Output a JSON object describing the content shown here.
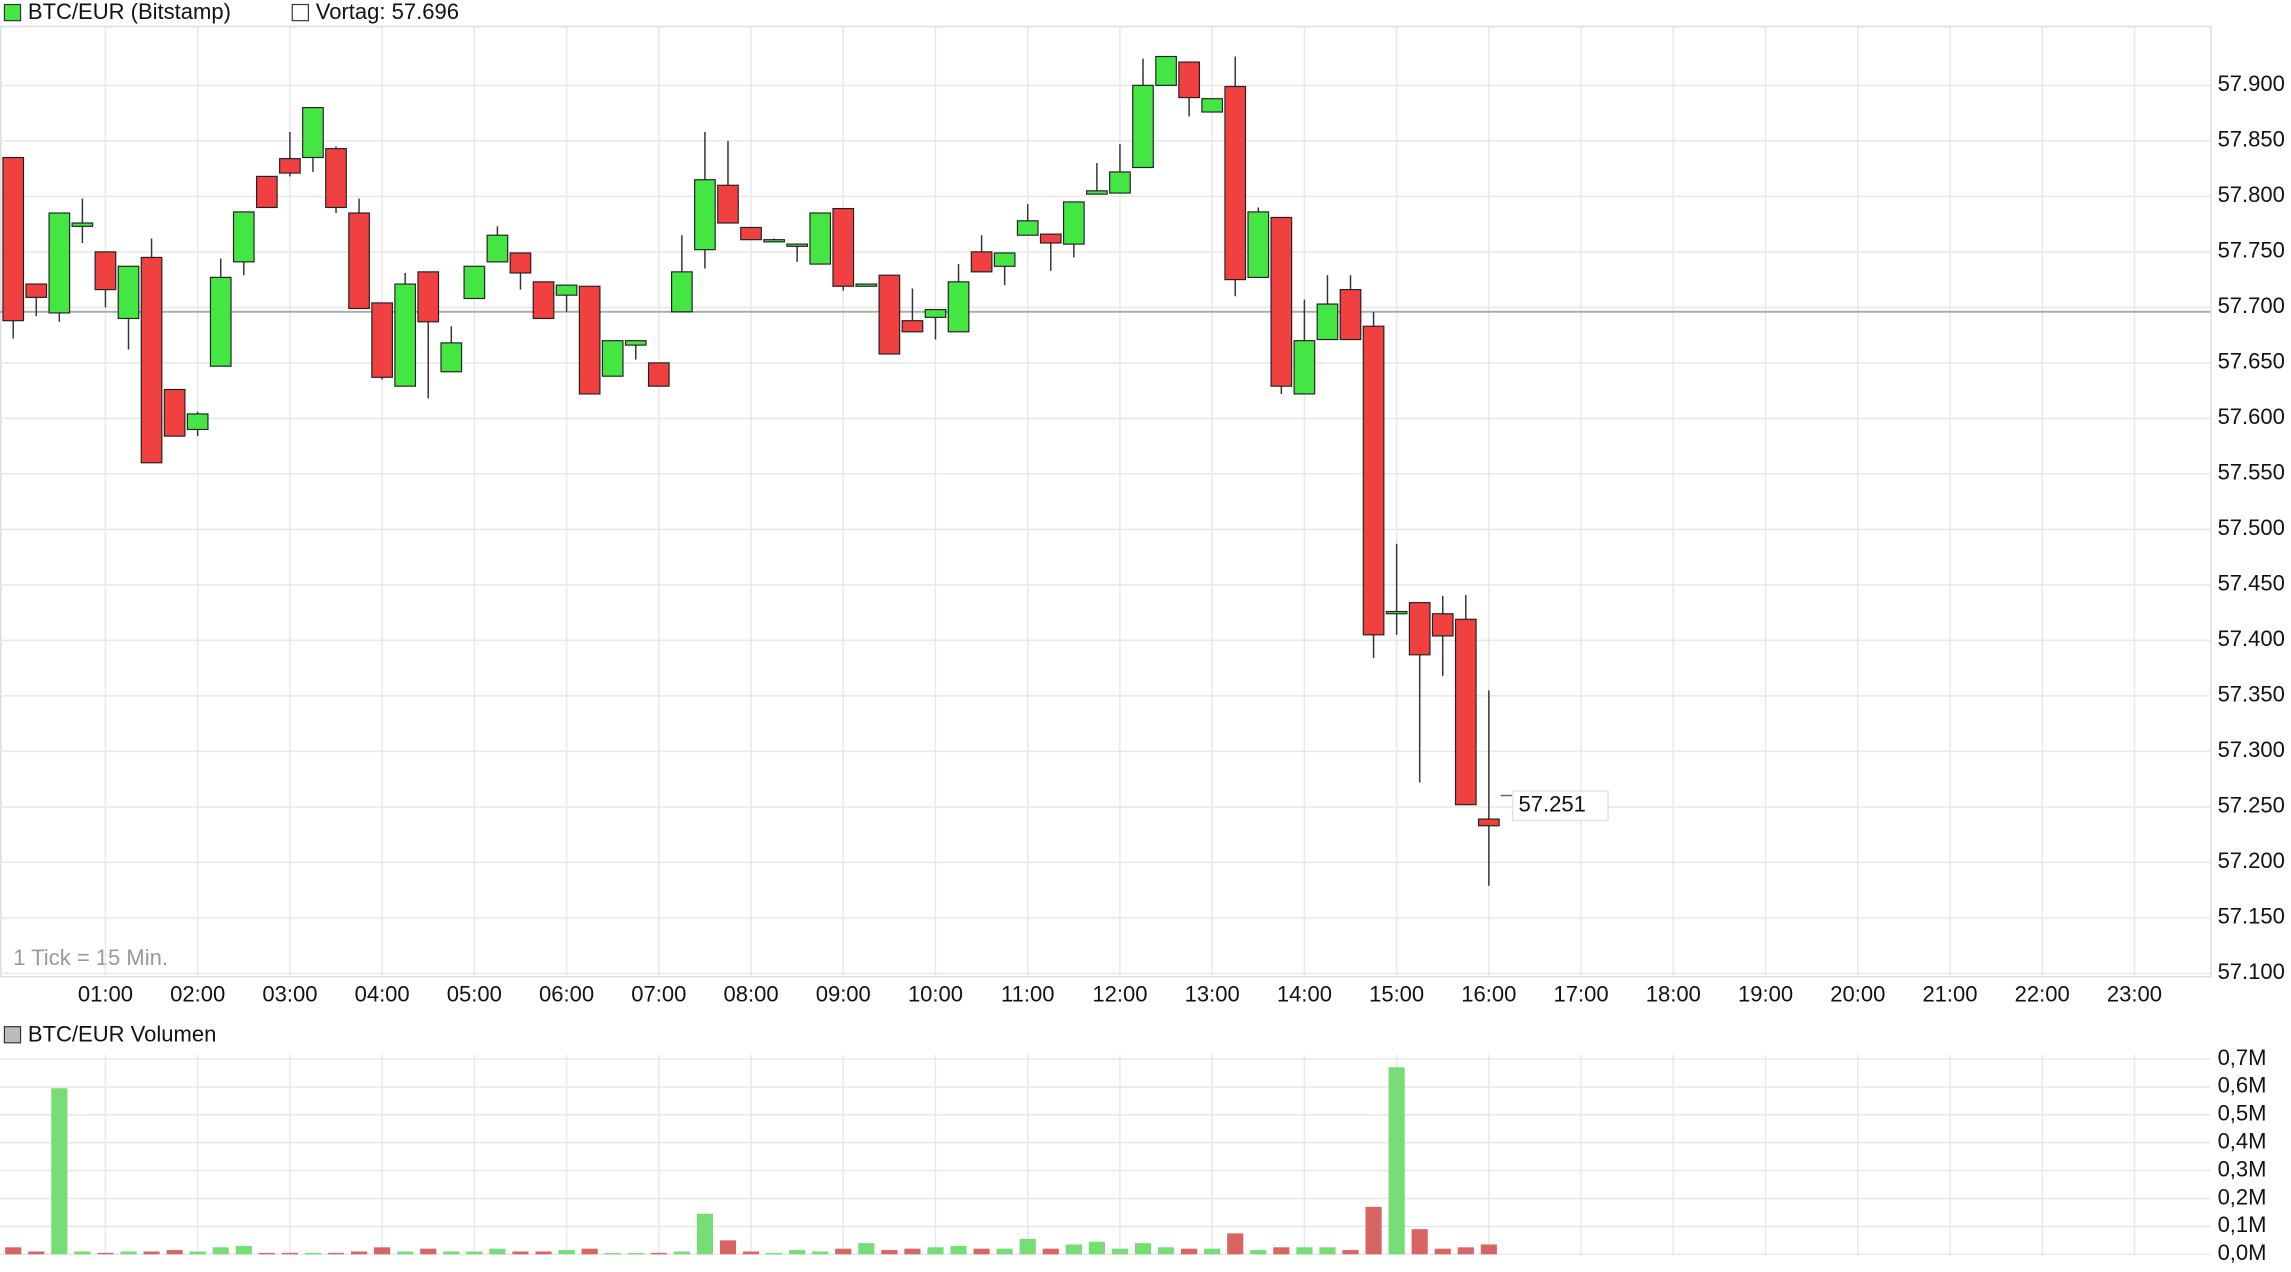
{
  "chart_data": [
    {
      "type": "candlestick",
      "title": "BTC/EUR (Bitstamp)",
      "annotation": "1 Tick = 15 Min.",
      "reference_line": {
        "value": 57.696,
        "label": "Vortag: 57.696"
      },
      "last_value": 57.251,
      "xticks": [
        "01:00",
        "02:00",
        "03:00",
        "04:00",
        "05:00",
        "06:00",
        "07:00",
        "08:00",
        "09:00",
        "10:00",
        "11:00",
        "12:00",
        "13:00",
        "14:00",
        "15:00",
        "16:00",
        "17:00",
        "18:00",
        "19:00",
        "20:00",
        "21:00",
        "22:00",
        "23:00"
      ],
      "ylim": [
        57.097,
        57.953
      ],
      "yticks": [
        {
          "value": 57.1,
          "label": "57.100"
        },
        {
          "value": 57.15,
          "label": "57.150"
        },
        {
          "value": 57.2,
          "label": "57.200"
        },
        {
          "value": 57.25,
          "label": "57.250"
        },
        {
          "value": 57.3,
          "label": "57.300"
        },
        {
          "value": 57.35,
          "label": "57.350"
        },
        {
          "value": 57.4,
          "label": "57.400"
        },
        {
          "value": 57.45,
          "label": "57.450"
        },
        {
          "value": 57.5,
          "label": "57.500"
        },
        {
          "value": 57.55,
          "label": "57.550"
        },
        {
          "value": 57.6,
          "label": "57.600"
        },
        {
          "value": 57.65,
          "label": "57.650"
        },
        {
          "value": 57.7,
          "label": "57.700"
        },
        {
          "value": 57.75,
          "label": "57.750"
        },
        {
          "value": 57.8,
          "label": "57.800"
        },
        {
          "value": 57.85,
          "label": "57.850"
        },
        {
          "value": 57.9,
          "label": "57.900"
        }
      ],
      "grid": true,
      "up_color": "#44e644",
      "down_color": "#f04040",
      "open": [
        57.835,
        57.721,
        57.695,
        57.773,
        57.75,
        57.69,
        57.745,
        57.626,
        57.59,
        57.647,
        57.741,
        57.818,
        57.834,
        57.835,
        57.843,
        57.785,
        57.704,
        57.629,
        57.732,
        57.642,
        57.708,
        57.741,
        57.749,
        57.723,
        57.711,
        57.719,
        57.638,
        57.666,
        57.65,
        57.696,
        57.752,
        57.81,
        57.772,
        57.761,
        57.755,
        57.739,
        57.789,
        57.719,
        57.729,
        57.688,
        57.691,
        57.678,
        57.75,
        57.737,
        57.765,
        57.766,
        57.757,
        57.802,
        57.803,
        57.826,
        57.9,
        57.921,
        57.876,
        57.899,
        57.727,
        57.781,
        57.622,
        57.671,
        57.716,
        57.683,
        57.424,
        57.434,
        57.424,
        57.419,
        57.239
      ],
      "high": [
        57.835,
        57.721,
        57.785,
        57.798,
        57.75,
        57.737,
        57.762,
        57.626,
        57.606,
        57.744,
        57.786,
        57.818,
        57.858,
        57.88,
        57.845,
        57.798,
        57.704,
        57.731,
        57.732,
        57.683,
        57.737,
        57.773,
        57.749,
        57.723,
        57.72,
        57.719,
        57.67,
        57.67,
        57.65,
        57.765,
        57.858,
        57.85,
        57.772,
        57.762,
        57.757,
        57.785,
        57.789,
        57.721,
        57.729,
        57.717,
        57.698,
        57.739,
        57.765,
        57.749,
        57.793,
        57.766,
        57.795,
        57.83,
        57.847,
        57.924,
        57.926,
        57.921,
        57.888,
        57.926,
        57.79,
        57.781,
        57.707,
        57.729,
        57.729,
        57.696,
        57.487,
        57.434,
        57.44,
        57.441,
        57.355
      ],
      "low": [
        57.672,
        57.692,
        57.687,
        57.758,
        57.7,
        57.662,
        57.56,
        57.584,
        57.584,
        57.647,
        57.729,
        57.79,
        57.818,
        57.822,
        57.785,
        57.699,
        57.635,
        57.629,
        57.618,
        57.642,
        57.708,
        57.741,
        57.716,
        57.69,
        57.696,
        57.622,
        57.638,
        57.653,
        57.629,
        57.696,
        57.735,
        57.776,
        57.761,
        57.76,
        57.741,
        57.739,
        57.715,
        57.719,
        57.658,
        57.678,
        57.671,
        57.678,
        57.732,
        57.72,
        57.765,
        57.733,
        57.745,
        57.802,
        57.803,
        57.826,
        57.9,
        57.872,
        57.876,
        57.71,
        57.727,
        57.622,
        57.622,
        57.671,
        57.671,
        57.384,
        57.405,
        57.272,
        57.368,
        57.252,
        57.179
      ],
      "close": [
        57.688,
        57.709,
        57.785,
        57.776,
        57.716,
        57.737,
        57.56,
        57.584,
        57.604,
        57.727,
        57.786,
        57.79,
        57.821,
        57.88,
        57.79,
        57.699,
        57.637,
        57.721,
        57.687,
        57.668,
        57.737,
        57.765,
        57.731,
        57.69,
        57.72,
        57.622,
        57.67,
        57.67,
        57.629,
        57.732,
        57.815,
        57.776,
        57.761,
        57.761,
        57.757,
        57.785,
        57.719,
        57.721,
        57.658,
        57.678,
        57.698,
        57.723,
        57.732,
        57.749,
        57.778,
        57.758,
        57.795,
        57.805,
        57.822,
        57.9,
        57.926,
        57.889,
        57.888,
        57.725,
        57.786,
        57.629,
        57.67,
        57.703,
        57.671,
        57.405,
        57.426,
        57.387,
        57.404,
        57.252,
        57.233
      ]
    },
    {
      "type": "bar",
      "title": "BTC/EUR Volumen",
      "ylim": [
        0,
        0.7
      ],
      "yticks": [
        {
          "value": 0,
          "label": "0,0M"
        },
        {
          "value": 0.1,
          "label": "0,1M"
        },
        {
          "value": 0.2,
          "label": "0,2M"
        },
        {
          "value": 0.3,
          "label": "0,3M"
        },
        {
          "value": 0.4,
          "label": "0,4M"
        },
        {
          "value": 0.5,
          "label": "0,5M"
        },
        {
          "value": 0.6,
          "label": "0,6M"
        },
        {
          "value": 0.7,
          "label": "0,7M"
        }
      ],
      "grid": true,
      "up_color": "#77dd77",
      "down_color": "#d96464",
      "values": [
        0.025,
        0.01,
        0.595,
        0.01,
        0.005,
        0.01,
        0.01,
        0.015,
        0.01,
        0.025,
        0.03,
        0.005,
        0.005,
        0.005,
        0.005,
        0.01,
        0.025,
        0.01,
        0.02,
        0.01,
        0.01,
        0.02,
        0.01,
        0.01,
        0.015,
        0.02,
        0.005,
        0.005,
        0.005,
        0.01,
        0.145,
        0.05,
        0.01,
        0.005,
        0.015,
        0.01,
        0.02,
        0.04,
        0.015,
        0.02,
        0.025,
        0.03,
        0.02,
        0.02,
        0.055,
        0.02,
        0.035,
        0.045,
        0.02,
        0.04,
        0.025,
        0.02,
        0.02,
        0.075,
        0.015,
        0.025,
        0.025,
        0.025,
        0.015,
        0.17,
        0.67,
        0.09,
        0.02,
        0.025,
        0.035
      ]
    }
  ]
}
